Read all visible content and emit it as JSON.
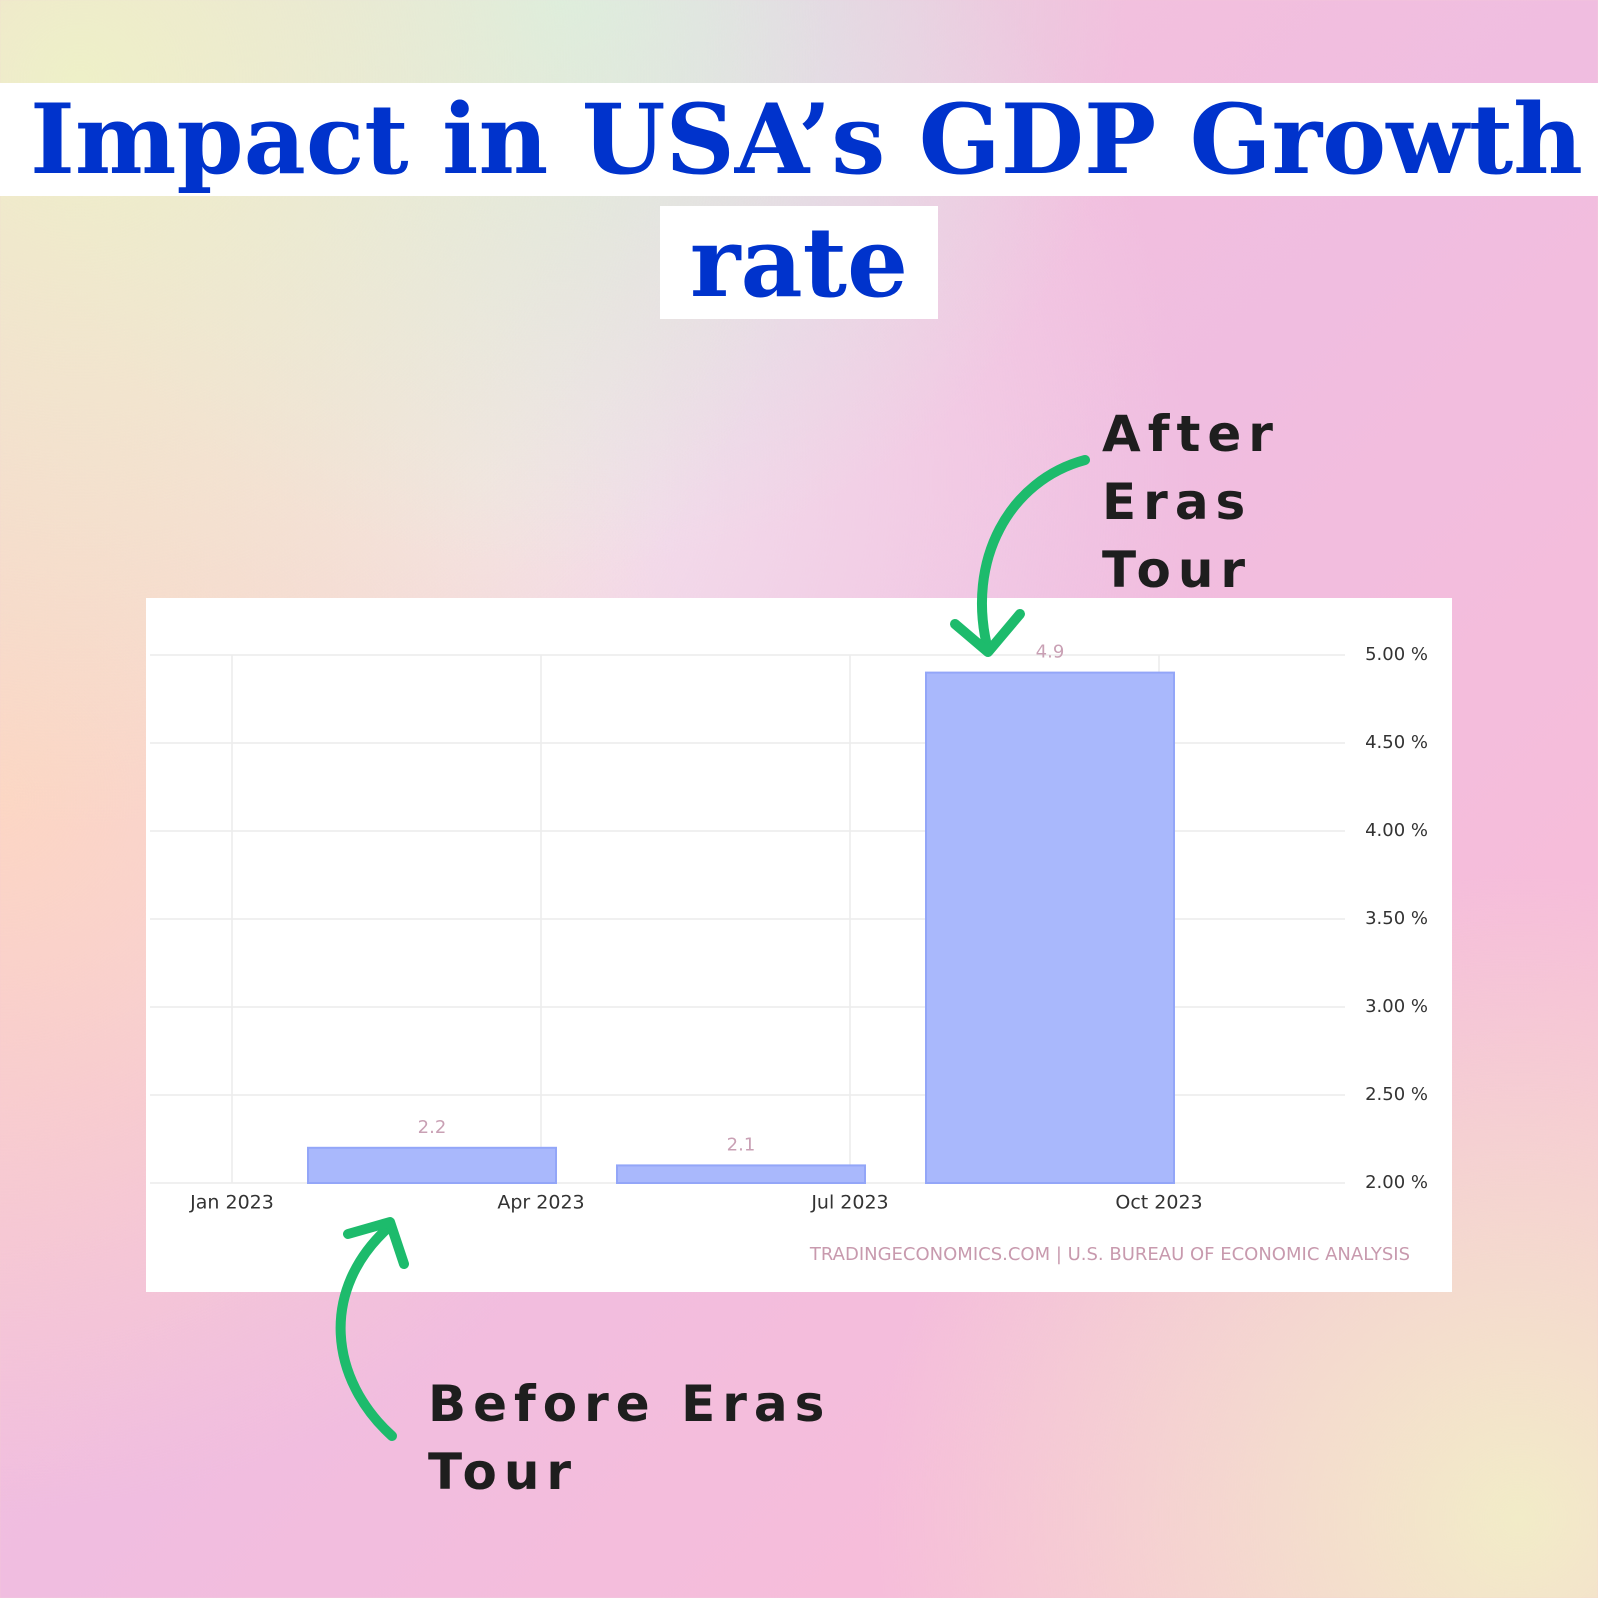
{
  "chart_data": {
    "type": "bar",
    "title": "Impact in USA’s GDP Growth rate",
    "categories": [
      null,
      null,
      null
    ],
    "values": [
      2.2,
      2.1,
      4.9
    ],
    "color": "#a9b8fc",
    "stroke": "#93a6f8",
    "ylim": [
      2,
      5
    ],
    "yticks": [
      {
        "value": 2,
        "label": "2.00 %"
      },
      {
        "value": 2.5,
        "label": "2.50 %"
      },
      {
        "value": 3,
        "label": "3.00 %"
      },
      {
        "value": 3.5,
        "label": "3.50 %"
      },
      {
        "value": 4,
        "label": "4.00 %"
      },
      {
        "value": 4.5,
        "label": "4.50 %"
      },
      {
        "value": 5,
        "label": "5.00 %"
      }
    ],
    "xtick_labels": [
      "Jan 2023",
      "Apr 2023",
      "Jul 2023",
      "Oct 2023"
    ],
    "grid": true,
    "source": "TRADINGECONOMICS.COM | U.S. BUREAU OF ECONOMIC ANALYSIS",
    "annotations": [
      "After Eras Tour",
      "Before Eras Tour"
    ]
  }
}
